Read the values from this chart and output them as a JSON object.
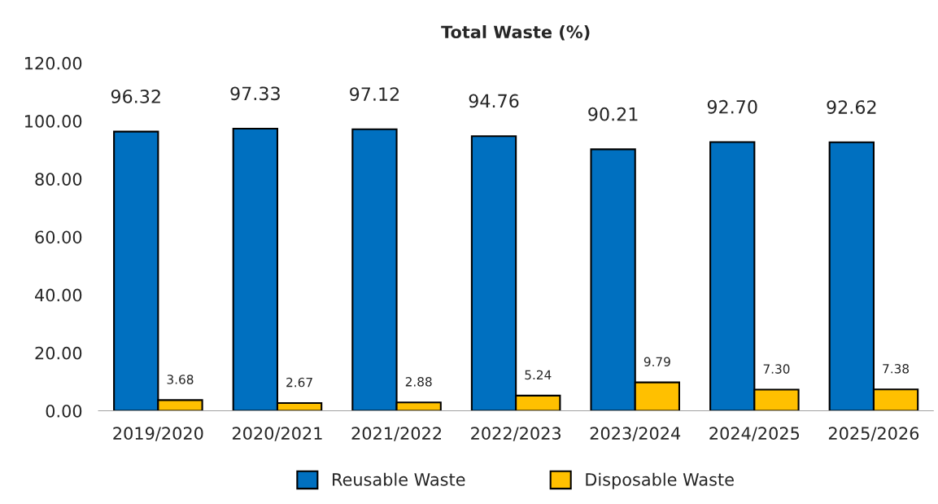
{
  "chart_data": {
    "type": "bar",
    "title": "Total Waste (%)",
    "categories": [
      "2019/2020",
      "2020/2021",
      "2021/2022",
      "2022/2023",
      "2023/2024",
      "2024/2025",
      "2025/2026"
    ],
    "series": [
      {
        "name": "Reusable Waste",
        "color": "#0070c0",
        "values": [
          96.32,
          97.33,
          97.12,
          94.76,
          90.21,
          92.7,
          92.62
        ],
        "value_labels": [
          "96.32",
          "97.33",
          "97.12",
          "94.76",
          "90.21",
          "92.70",
          "92.62"
        ]
      },
      {
        "name": "Disposable Waste",
        "color": "#ffc000",
        "values": [
          3.68,
          2.67,
          2.88,
          5.24,
          9.79,
          7.3,
          7.38
        ],
        "value_labels": [
          "3.68",
          "2.67",
          "2.88",
          "5.24",
          "9.79",
          "7.30",
          "7.38"
        ]
      }
    ],
    "ylim": [
      0,
      120
    ],
    "yticks": [
      {
        "value": 0,
        "label": "0.00"
      },
      {
        "value": 20,
        "label": "20.00"
      },
      {
        "value": 40,
        "label": "40.00"
      },
      {
        "value": 60,
        "label": "60.00"
      },
      {
        "value": 80,
        "label": "80.00"
      },
      {
        "value": 100,
        "label": "100.00"
      },
      {
        "value": 120,
        "label": "120.00"
      }
    ],
    "grid": false,
    "legend": "bottom"
  }
}
